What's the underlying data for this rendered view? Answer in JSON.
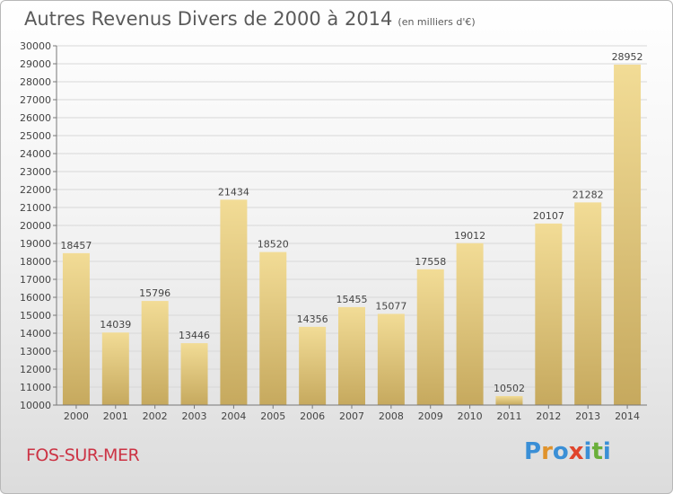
{
  "title": "Autres Revenus Divers de 2000 à 2014",
  "unit": "(en milliers d'€)",
  "footer": "FOS-SUR-MER",
  "logo": {
    "letters": [
      "P",
      "r",
      "o",
      "x",
      "i",
      "t",
      "i"
    ],
    "colors": [
      "#3a8fd6",
      "#e0932c",
      "#3a8fd6",
      "#e0452c",
      "#3a8fd6",
      "#6aaf3a",
      "#3a8fd6"
    ]
  },
  "colors": {
    "bar_light": "#f2dc96",
    "bar_dark": "#c6a95e",
    "text": "#444444",
    "grid": "#d8d8d8"
  },
  "chart_data": {
    "type": "bar",
    "categories": [
      "2000",
      "2001",
      "2002",
      "2003",
      "2004",
      "2005",
      "2006",
      "2007",
      "2008",
      "2009",
      "2010",
      "2011",
      "2012",
      "2013",
      "2014"
    ],
    "values": [
      18457,
      14039,
      15796,
      13446,
      21434,
      18520,
      14356,
      15455,
      15077,
      17558,
      19012,
      10502,
      20107,
      21282,
      28952
    ],
    "ylim": [
      10000,
      30000
    ],
    "ytick_step": 1000,
    "grid": true
  }
}
